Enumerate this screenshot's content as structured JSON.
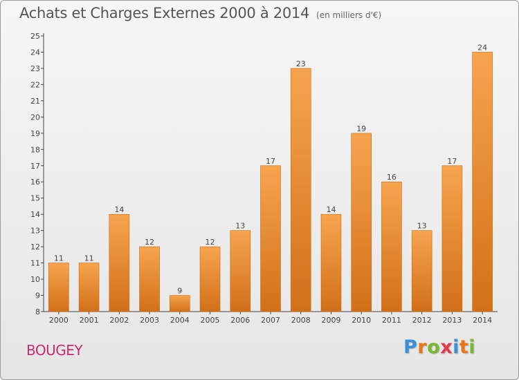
{
  "chart_data": {
    "type": "bar",
    "title": "Achats et Charges Externes 2000 à 2014",
    "subtitle": "(en milliers d'€)",
    "categories": [
      "2000",
      "2001",
      "2002",
      "2003",
      "2004",
      "2005",
      "2006",
      "2007",
      "2008",
      "2009",
      "2010",
      "2011",
      "2012",
      "2013",
      "2014"
    ],
    "values": [
      11,
      11,
      14,
      12,
      9,
      12,
      13,
      17,
      23,
      14,
      19,
      16,
      13,
      17,
      24
    ],
    "ylim": [
      8,
      25
    ],
    "yticks": [
      8,
      9,
      10,
      11,
      12,
      13,
      14,
      15,
      16,
      17,
      18,
      19,
      20,
      21,
      22,
      23,
      24,
      25
    ],
    "grid": false,
    "colors": {
      "bar_light": "#f7a44e",
      "bar_dark": "#d2701a",
      "bar_edge": "#c96a12"
    }
  },
  "location": "BOUGEY",
  "logo": {
    "letters": [
      "P",
      "r",
      "o",
      "x",
      "i",
      "t",
      "i"
    ],
    "colors": [
      "#3d8fd6",
      "#e9771a",
      "#7ab832",
      "#e23b4c",
      "#3d8fd6",
      "#e9771a",
      "#7ab832"
    ]
  }
}
